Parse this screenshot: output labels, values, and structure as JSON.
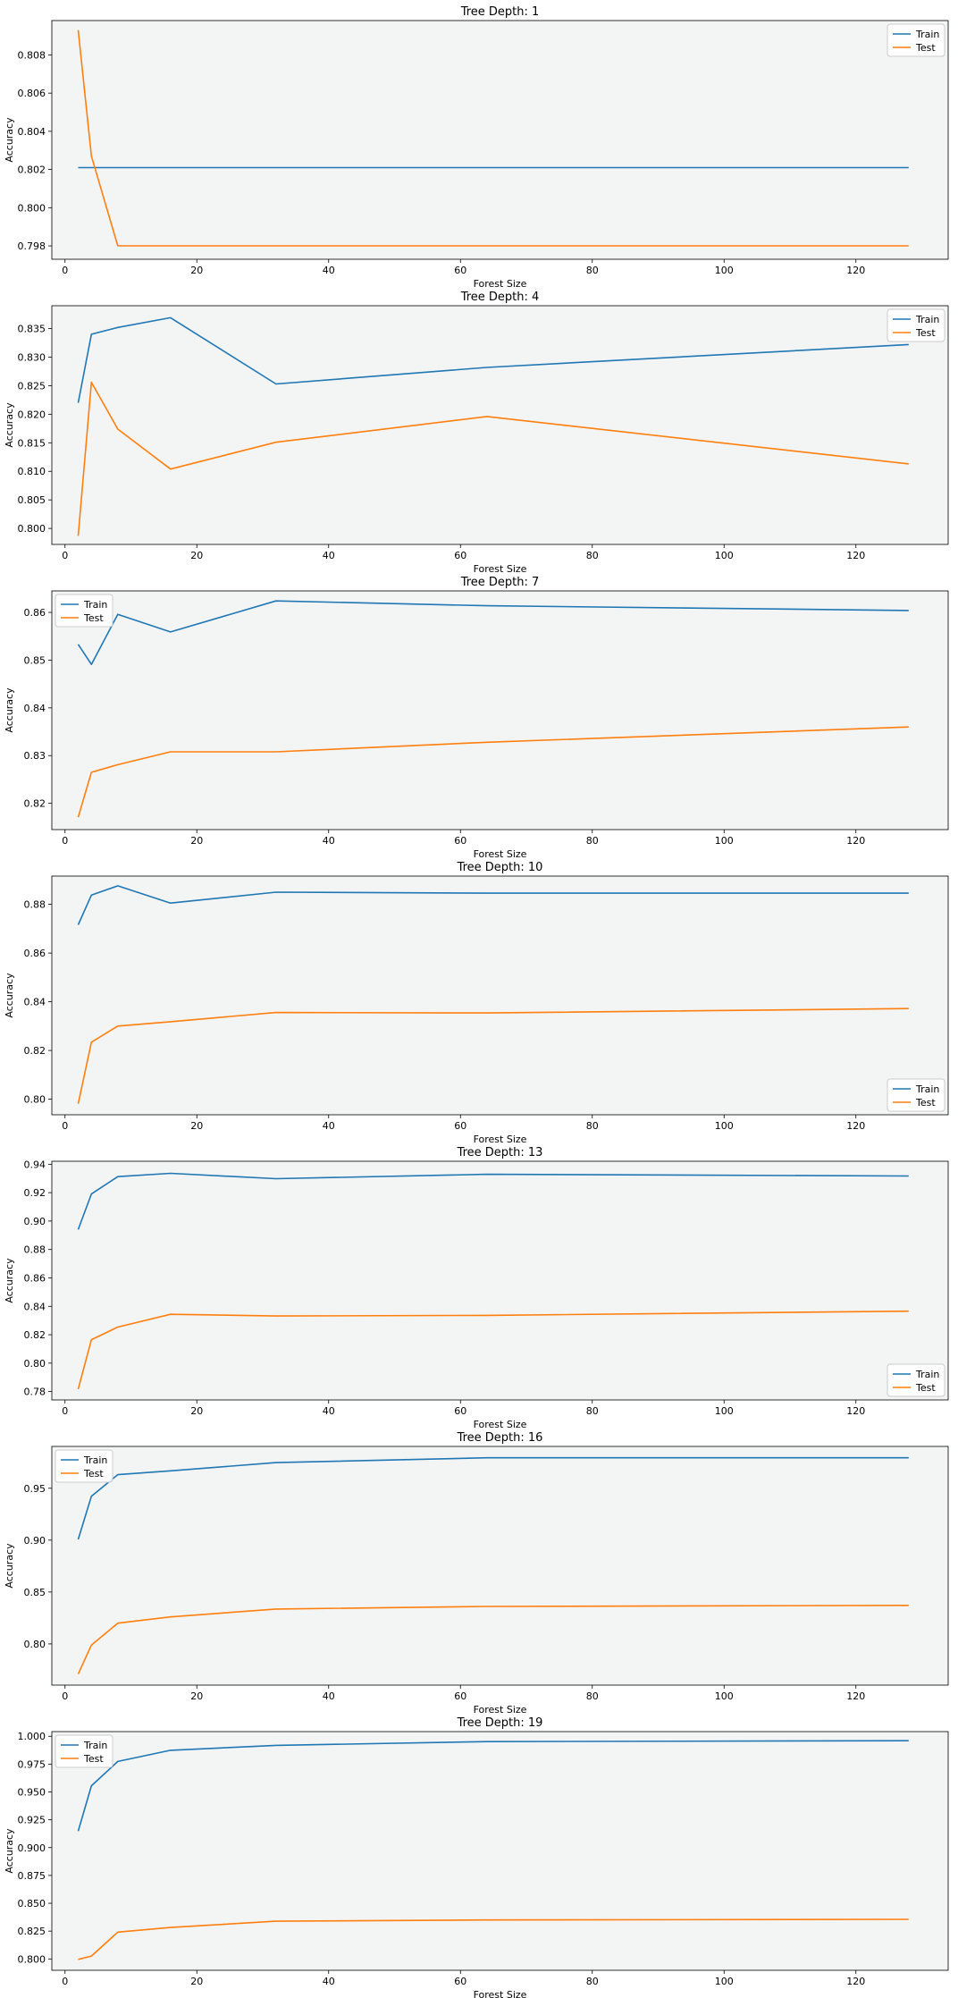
{
  "figure": {
    "series_names": [
      "Train",
      "Test"
    ],
    "colors": {
      "train": "#1f77b4",
      "test": "#ff7f0e",
      "plot_bg": "#f3f4f4",
      "axes": "#000000"
    }
  },
  "chart_data": [
    {
      "type": "line",
      "title": "Tree Depth: 1",
      "xlabel": "Forest Size",
      "ylabel": "Accuracy",
      "x": [
        2,
        4,
        8,
        16,
        32,
        64,
        128
      ],
      "xlim": [
        -2,
        134
      ],
      "ylim": [
        0.7973,
        0.8098
      ],
      "xticks": [
        0,
        20,
        40,
        60,
        80,
        100,
        120
      ],
      "yticks": [
        0.798,
        0.8,
        0.802,
        0.804,
        0.806,
        0.808
      ],
      "ytick_labels": [
        "0.798",
        "0.800",
        "0.802",
        "0.804",
        "0.806",
        "0.808"
      ],
      "legend": "top-right",
      "grid": false,
      "series": [
        {
          "name": "Train",
          "values": [
            0.8021,
            0.8021,
            0.8021,
            0.8021,
            0.8021,
            0.8021,
            0.8021
          ]
        },
        {
          "name": "Test",
          "values": [
            0.8093,
            0.8027,
            0.798,
            0.798,
            0.798,
            0.798,
            0.798
          ]
        }
      ]
    },
    {
      "type": "line",
      "title": "Tree Depth: 4",
      "xlabel": "Forest Size",
      "ylabel": "Accuracy",
      "x": [
        2,
        4,
        8,
        16,
        32,
        64,
        128
      ],
      "xlim": [
        -2,
        134
      ],
      "ylim": [
        0.7972,
        0.839
      ],
      "xticks": [
        0,
        20,
        40,
        60,
        80,
        100,
        120
      ],
      "yticks": [
        0.8,
        0.805,
        0.81,
        0.815,
        0.82,
        0.825,
        0.83,
        0.835
      ],
      "ytick_labels": [
        "0.800",
        "0.805",
        "0.810",
        "0.815",
        "0.820",
        "0.825",
        "0.830",
        "0.835"
      ],
      "legend": "top-right",
      "grid": false,
      "series": [
        {
          "name": "Train",
          "values": [
            0.822,
            0.834,
            0.8352,
            0.8369,
            0.8253,
            0.8282,
            0.8322
          ]
        },
        {
          "name": "Test",
          "values": [
            0.7987,
            0.8256,
            0.8174,
            0.8104,
            0.8151,
            0.8196,
            0.8113
          ]
        }
      ]
    },
    {
      "type": "line",
      "title": "Tree Depth: 7",
      "xlabel": "Forest Size",
      "ylabel": "Accuracy",
      "x": [
        2,
        4,
        8,
        16,
        32,
        64,
        128
      ],
      "xlim": [
        -2,
        134
      ],
      "ylim": [
        0.8145,
        0.8645
      ],
      "xticks": [
        0,
        20,
        40,
        60,
        80,
        100,
        120
      ],
      "yticks": [
        0.82,
        0.83,
        0.84,
        0.85,
        0.86
      ],
      "ytick_labels": [
        "0.82",
        "0.83",
        "0.84",
        "0.85",
        "0.86"
      ],
      "legend": "top-left",
      "grid": false,
      "series": [
        {
          "name": "Train",
          "values": [
            0.8533,
            0.8491,
            0.8596,
            0.8559,
            0.8624,
            0.8614,
            0.8604
          ]
        },
        {
          "name": "Test",
          "values": [
            0.8171,
            0.8265,
            0.8281,
            0.8308,
            0.8308,
            0.8328,
            0.836
          ]
        }
      ]
    },
    {
      "type": "line",
      "title": "Tree Depth: 10",
      "xlabel": "Forest Size",
      "ylabel": "Accuracy",
      "x": [
        2,
        4,
        8,
        16,
        32,
        64,
        128
      ],
      "xlim": [
        -2,
        134
      ],
      "ylim": [
        0.7936,
        0.8916
      ],
      "xticks": [
        0,
        20,
        40,
        60,
        80,
        100,
        120
      ],
      "yticks": [
        0.8,
        0.82,
        0.84,
        0.86,
        0.88
      ],
      "ytick_labels": [
        "0.80",
        "0.82",
        "0.84",
        "0.86",
        "0.88"
      ],
      "legend": "bottom-right",
      "grid": false,
      "series": [
        {
          "name": "Train",
          "values": [
            0.8716,
            0.8838,
            0.8876,
            0.8805,
            0.885,
            0.8846,
            0.8846
          ]
        },
        {
          "name": "Test",
          "values": [
            0.7981,
            0.8234,
            0.83,
            0.8318,
            0.8356,
            0.8354,
            0.8372
          ]
        }
      ]
    },
    {
      "type": "line",
      "title": "Tree Depth: 13",
      "xlabel": "Forest Size",
      "ylabel": "Accuracy",
      "x": [
        2,
        4,
        8,
        16,
        32,
        64,
        128
      ],
      "xlim": [
        -2,
        134
      ],
      "ylim": [
        0.7741,
        0.9421
      ],
      "xticks": [
        0,
        20,
        40,
        60,
        80,
        100,
        120
      ],
      "yticks": [
        0.78,
        0.8,
        0.82,
        0.84,
        0.86,
        0.88,
        0.9,
        0.92,
        0.94
      ],
      "ytick_labels": [
        "0.78",
        "0.80",
        "0.82",
        "0.84",
        "0.86",
        "0.88",
        "0.90",
        "0.92",
        "0.94"
      ],
      "legend": "bottom-right",
      "grid": false,
      "series": [
        {
          "name": "Train",
          "values": [
            0.894,
            0.9191,
            0.9313,
            0.9336,
            0.9298,
            0.9329,
            0.9317
          ]
        },
        {
          "name": "Test",
          "values": [
            0.7817,
            0.8165,
            0.8254,
            0.8344,
            0.8332,
            0.8336,
            0.8366
          ]
        }
      ]
    },
    {
      "type": "line",
      "title": "Tree Depth: 16",
      "xlabel": "Forest Size",
      "ylabel": "Accuracy",
      "x": [
        2,
        4,
        8,
        16,
        32,
        64,
        128
      ],
      "xlim": [
        -2,
        134
      ],
      "ylim": [
        0.7603,
        0.9903
      ],
      "xticks": [
        0,
        20,
        40,
        60,
        80,
        100,
        120
      ],
      "yticks": [
        0.8,
        0.85,
        0.9,
        0.95
      ],
      "ytick_labels": [
        "0.80",
        "0.85",
        "0.90",
        "0.95"
      ],
      "legend": "top-left",
      "grid": false,
      "series": [
        {
          "name": "Train",
          "values": [
            0.9007,
            0.9423,
            0.9631,
            0.9668,
            0.9747,
            0.9794,
            0.9794
          ]
        },
        {
          "name": "Test",
          "values": [
            0.771,
            0.7989,
            0.82,
            0.826,
            0.8336,
            0.8361,
            0.8371
          ]
        }
      ]
    },
    {
      "type": "line",
      "title": "Tree Depth: 19",
      "xlabel": "Forest Size",
      "ylabel": "Accuracy",
      "x": [
        2,
        4,
        8,
        16,
        32,
        64,
        128
      ],
      "xlim": [
        -2,
        134
      ],
      "ylim": [
        0.7898,
        1.0042
      ],
      "xticks": [
        0,
        20,
        40,
        60,
        80,
        100,
        120
      ],
      "yticks": [
        0.8,
        0.825,
        0.85,
        0.875,
        0.9,
        0.925,
        0.95,
        0.975,
        1.0
      ],
      "ytick_labels": [
        "0.800",
        "0.825",
        "0.850",
        "0.875",
        "0.900",
        "0.925",
        "0.950",
        "0.975",
        "1.000"
      ],
      "legend": "top-left",
      "grid": false,
      "series": [
        {
          "name": "Train",
          "values": [
            0.9148,
            0.9555,
            0.9774,
            0.9874,
            0.9918,
            0.9952,
            0.996
          ]
        },
        {
          "name": "Test",
          "values": [
            0.7996,
            0.8026,
            0.8241,
            0.8283,
            0.8339,
            0.835,
            0.8356
          ]
        }
      ]
    }
  ]
}
